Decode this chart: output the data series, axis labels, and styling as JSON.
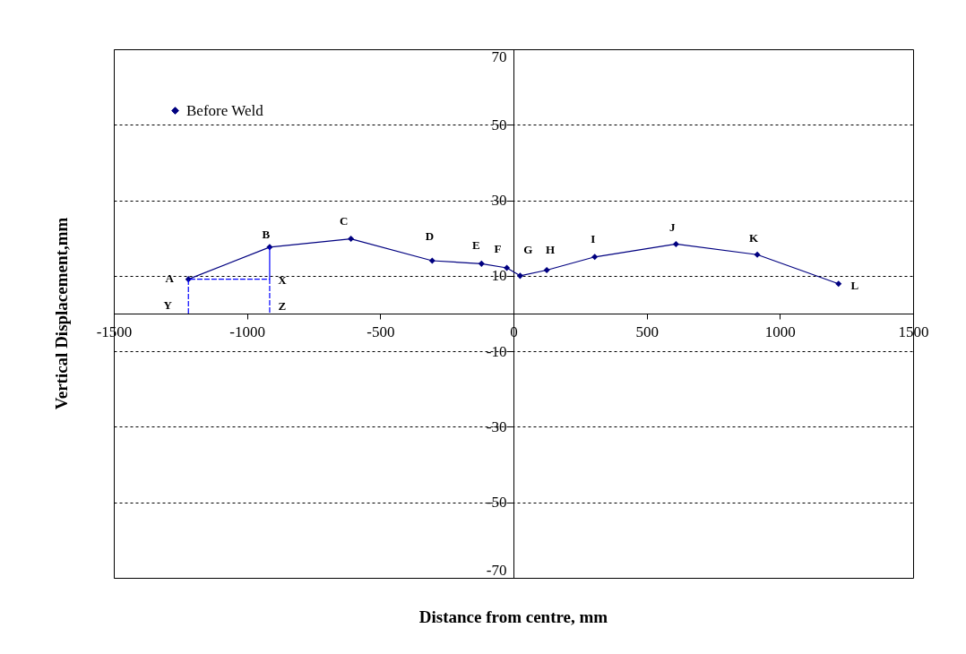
{
  "chart_data": {
    "type": "line",
    "xlabel": "Distance from centre, mm",
    "ylabel": "Vertical Displacement,mm",
    "xlim": [
      -1500,
      1500
    ],
    "xticks": [
      -1500,
      -1000,
      -500,
      0,
      500,
      1000,
      1500
    ],
    "ylim": [
      -70,
      70
    ],
    "yticks": [
      -70,
      -50,
      -30,
      -10,
      10,
      30,
      50,
      70
    ],
    "grid": "y",
    "legend": "top left",
    "marker": "diamond",
    "line_style": "solid",
    "series": [
      {
        "name": "Before Weld",
        "color": "#000080",
        "x": [
          -1220,
          -915,
          -610,
          -305,
          -120,
          -25,
          25,
          125,
          305,
          610,
          915,
          1220
        ],
        "values": [
          9.1,
          17.6,
          19.8,
          14.0,
          13.2,
          12.1,
          10.0,
          11.5,
          15.0,
          18.4,
          15.6,
          7.9
        ]
      },
      {
        "color": "#0000ff",
        "marker": "none",
        "line_style": "dashed",
        "x": [
          -1220,
          -1220,
          -915,
          -915,
          -915
        ],
        "values": [
          0,
          9.1,
          9.1,
          17.6,
          0
        ]
      }
    ],
    "annotations": [
      {
        "text": "A",
        "x": -1220,
        "y": 9.1
      },
      {
        "text": "B",
        "x": -915,
        "y": 17.6
      },
      {
        "text": "C",
        "x": -610,
        "y": 19.8
      },
      {
        "text": "D",
        "x": -305,
        "y": 14.0
      },
      {
        "text": "E",
        "x": -120,
        "y": 13.2
      },
      {
        "text": "F",
        "x": -25,
        "y": 12.1
      },
      {
        "text": "G",
        "x": 25,
        "y": 10.0
      },
      {
        "text": "H",
        "x": 125,
        "y": 11.5
      },
      {
        "text": "I",
        "x": 305,
        "y": 15.0
      },
      {
        "text": "J",
        "x": 610,
        "y": 18.4
      },
      {
        "text": "K",
        "x": 915,
        "y": 15.6
      },
      {
        "text": "L",
        "x": 1220,
        "y": 7.9
      },
      {
        "text": "X",
        "x": -915,
        "y": 9.1
      },
      {
        "text": "Y",
        "x": -1220,
        "y": 0
      },
      {
        "text": "Z",
        "x": -915,
        "y": 0
      }
    ]
  }
}
